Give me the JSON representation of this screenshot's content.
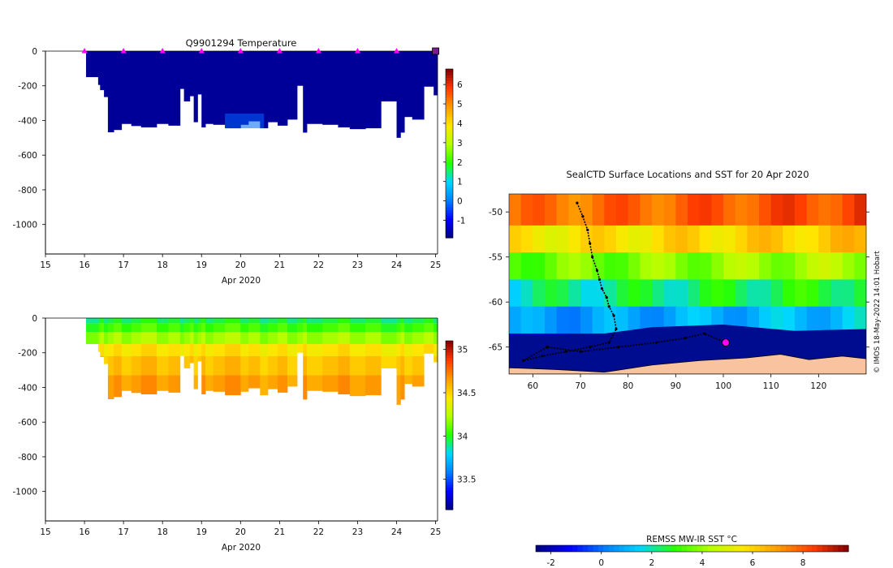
{
  "colors": {
    "jet": [
      "#00007f",
      "#0000ff",
      "#007fff",
      "#00d6ff",
      "#28ff00",
      "#b4ff00",
      "#ffe600",
      "#ff9a00",
      "#ff3a00",
      "#7f0000"
    ],
    "sea_ice": "#000c8f",
    "land": "#f8c39e",
    "float_marker": "#ff00ff",
    "track": "#000000"
  },
  "chart_data": [
    {
      "type": "heatmap",
      "name": "temperature-section",
      "title": "Q9901294  Temperature",
      "xlabel": "Apr 2020",
      "ylabel": "",
      "x_ticks": [
        15,
        16,
        17,
        18,
        19,
        20,
        21,
        22,
        23,
        24,
        25
      ],
      "xlim": [
        15,
        25.05
      ],
      "y_ticks": [
        0,
        -200,
        -400,
        -600,
        -800,
        -1000
      ],
      "ylim": [
        -1170,
        0
      ],
      "colorbar": {
        "ticks": [
          -1,
          0,
          1,
          2,
          3,
          4,
          5,
          6
        ],
        "range": [
          -1.9,
          6.8
        ]
      },
      "profile_markers_x": [
        16,
        17,
        18,
        19,
        20,
        21,
        22,
        23,
        24,
        25
      ],
      "surface_value": -1.7,
      "deep_anomaly": {
        "x_range": [
          19.6,
          20.6
        ],
        "depth_range": [
          -360,
          -445
        ],
        "value": -0.2
      },
      "profiles": [
        {
          "x0": 16.04,
          "x1": 16.35,
          "depth": -150
        },
        {
          "x0": 16.35,
          "x1": 16.4,
          "depth": -195
        },
        {
          "x0": 16.4,
          "x1": 16.5,
          "depth": -225
        },
        {
          "x0": 16.5,
          "x1": 16.6,
          "depth": -265
        },
        {
          "x0": 16.6,
          "x1": 16.75,
          "depth": -468
        },
        {
          "x0": 16.75,
          "x1": 16.95,
          "depth": -455
        },
        {
          "x0": 16.95,
          "x1": 17.2,
          "depth": -420
        },
        {
          "x0": 17.2,
          "x1": 17.45,
          "depth": -432
        },
        {
          "x0": 17.45,
          "x1": 17.85,
          "depth": -440
        },
        {
          "x0": 17.85,
          "x1": 18.15,
          "depth": -420
        },
        {
          "x0": 18.15,
          "x1": 18.45,
          "depth": -430
        },
        {
          "x0": 18.45,
          "x1": 18.55,
          "depth": -218
        },
        {
          "x0": 18.55,
          "x1": 18.7,
          "depth": -290
        },
        {
          "x0": 18.7,
          "x1": 18.8,
          "depth": -260
        },
        {
          "x0": 18.8,
          "x1": 18.9,
          "depth": -410
        },
        {
          "x0": 18.9,
          "x1": 19.0,
          "depth": -250
        },
        {
          "x0": 19.0,
          "x1": 19.1,
          "depth": -440
        },
        {
          "x0": 19.1,
          "x1": 19.3,
          "depth": -420
        },
        {
          "x0": 19.3,
          "x1": 19.6,
          "depth": -425
        },
        {
          "x0": 19.6,
          "x1": 20.0,
          "depth": -445
        },
        {
          "x0": 20.0,
          "x1": 20.2,
          "depth": -425
        },
        {
          "x0": 20.2,
          "x1": 20.5,
          "depth": -405
        },
        {
          "x0": 20.5,
          "x1": 20.7,
          "depth": -445
        },
        {
          "x0": 20.7,
          "x1": 20.95,
          "depth": -410
        },
        {
          "x0": 20.95,
          "x1": 21.2,
          "depth": -430
        },
        {
          "x0": 21.2,
          "x1": 21.45,
          "depth": -395
        },
        {
          "x0": 21.45,
          "x1": 21.6,
          "depth": -200
        },
        {
          "x0": 21.6,
          "x1": 21.7,
          "depth": -470
        },
        {
          "x0": 21.7,
          "x1": 22.1,
          "depth": -420
        },
        {
          "x0": 22.1,
          "x1": 22.5,
          "depth": -425
        },
        {
          "x0": 22.5,
          "x1": 22.8,
          "depth": -440
        },
        {
          "x0": 22.8,
          "x1": 23.2,
          "depth": -450
        },
        {
          "x0": 23.2,
          "x1": 23.6,
          "depth": -445
        },
        {
          "x0": 23.6,
          "x1": 24.0,
          "depth": -290
        },
        {
          "x0": 24.0,
          "x1": 24.1,
          "depth": -500
        },
        {
          "x0": 24.1,
          "x1": 24.2,
          "depth": -470
        },
        {
          "x0": 24.2,
          "x1": 24.4,
          "depth": -380
        },
        {
          "x0": 24.4,
          "x1": 24.7,
          "depth": -395
        },
        {
          "x0": 24.7,
          "x1": 24.95,
          "depth": -205
        },
        {
          "x0": 24.95,
          "x1": 25.05,
          "depth": -255
        }
      ]
    },
    {
      "type": "heatmap",
      "name": "salinity-section",
      "title": "",
      "xlabel": "Apr 2020",
      "ylabel": "",
      "x_ticks": [
        15,
        16,
        17,
        18,
        19,
        20,
        21,
        22,
        23,
        24,
        25
      ],
      "xlim": [
        15,
        25.05
      ],
      "y_ticks": [
        0,
        -200,
        -400,
        -600,
        -800,
        -1000
      ],
      "ylim": [
        -1170,
        0
      ],
      "colorbar": {
        "ticks": [
          33.5,
          34,
          34.5,
          35
        ],
        "range": [
          33.15,
          35.1
        ]
      },
      "layers": [
        {
          "depth_top": 0,
          "depth_bottom": -30,
          "value": 33.95
        },
        {
          "depth_top": -30,
          "depth_bottom": -80,
          "value": 34.05
        },
        {
          "depth_top": -80,
          "depth_bottom": -150,
          "value": 34.2
        },
        {
          "depth_top": -150,
          "depth_bottom": -220,
          "value": 34.45
        },
        {
          "depth_top": -220,
          "depth_bottom": -330,
          "value": 34.55
        },
        {
          "depth_top": -330,
          "depth_bottom": -500,
          "value": 34.65
        }
      ]
    },
    {
      "type": "heatmap",
      "name": "sst-map",
      "title": "SealCTD Surface Locations and SST for 20 Apr 2020",
      "x_ticks": [
        60,
        70,
        80,
        90,
        100,
        110,
        120
      ],
      "xlim": [
        55,
        130
      ],
      "y_ticks": [
        -50,
        -55,
        -60,
        -65
      ],
      "ylim": [
        -68,
        -48
      ],
      "colorbar": {
        "label": "REMSS MW-IR SST °C",
        "ticks": [
          -2,
          0,
          2,
          4,
          6,
          8
        ],
        "range": [
          -2.6,
          9.8
        ]
      },
      "credit": "© IMOS 18-May-2022 14:01 Hobart",
      "sst_bands": [
        {
          "lat_top": -48,
          "lat_bottom": -51.5,
          "value": 7.5
        },
        {
          "lat_top": -51.5,
          "lat_bottom": -54.5,
          "value": 5.5
        },
        {
          "lat_top": -54.5,
          "lat_bottom": -57.5,
          "value": 3.5
        },
        {
          "lat_top": -57.5,
          "lat_bottom": -60.5,
          "value": 2.0
        },
        {
          "lat_top": -60.5,
          "lat_bottom": -63.5,
          "value": 0.5
        },
        {
          "lat_top": -63.5,
          "lat_bottom": -68,
          "value": -1.8
        }
      ],
      "track": [
        [
          69.3,
          -49.0
        ],
        [
          70.5,
          -50.5
        ],
        [
          71.5,
          -52.0
        ],
        [
          72.0,
          -53.5
        ],
        [
          72.5,
          -55.0
        ],
        [
          73.5,
          -56.5
        ],
        [
          74.0,
          -57.5
        ],
        [
          74.5,
          -58.5
        ],
        [
          75.5,
          -59.5
        ],
        [
          76.0,
          -60.5
        ],
        [
          77.0,
          -61.5
        ],
        [
          77.5,
          -63.0
        ],
        [
          76.0,
          -64.5
        ],
        [
          72.0,
          -65.0
        ],
        [
          67.0,
          -65.5
        ],
        [
          62.0,
          -66.0
        ],
        [
          58.0,
          -66.5
        ],
        [
          63.0,
          -65.0
        ],
        [
          70.0,
          -65.5
        ],
        [
          78.0,
          -65.0
        ],
        [
          86.0,
          -64.5
        ],
        [
          92.0,
          -64.0
        ],
        [
          96.0,
          -63.5
        ],
        [
          100.5,
          -64.5
        ]
      ],
      "current_position": [
        100.5,
        -64.5
      ]
    }
  ]
}
